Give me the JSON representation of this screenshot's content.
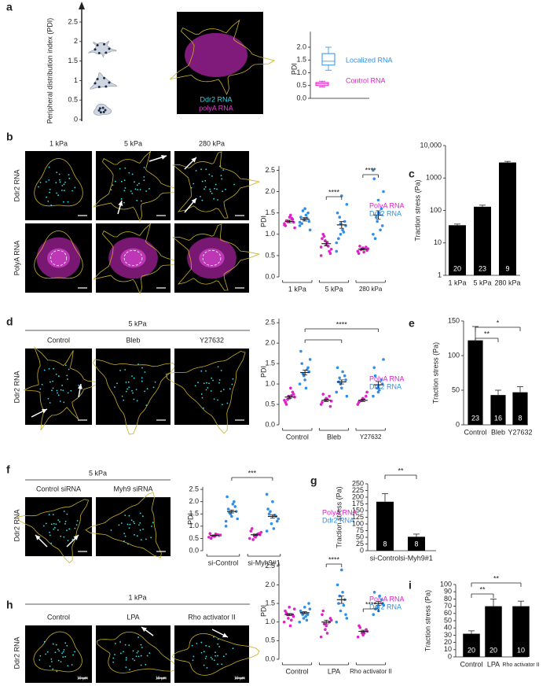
{
  "figure_labels": [
    "a",
    "b",
    "c",
    "d",
    "e",
    "f",
    "g",
    "h",
    "i"
  ],
  "panel_a": {
    "legend": [
      "Ddr2 RNA",
      "polyA RNA"
    ]
  },
  "panel_b": {
    "columns": [
      "1 kPa",
      "5 kPa",
      "280 kPa"
    ],
    "rows": [
      "Ddr2 RNA",
      "PolyA RNA"
    ]
  },
  "panel_d": {
    "condition": "5 kPa",
    "columns": [
      "Control",
      "Bleb",
      "Y27632"
    ],
    "rows": [
      "Ddr2 RNA"
    ]
  },
  "panel_f": {
    "condition": "5 kPa",
    "columns": [
      "Control siRNA",
      "Myh9 siRNA"
    ],
    "rows": [
      "Ddr2 RNA"
    ]
  },
  "panel_h": {
    "condition": "1 kPa",
    "columns": [
      "Control",
      "LPA",
      "Rho activator II"
    ],
    "rows": [
      "Ddr2 RNA"
    ],
    "scale_bars": [
      "10 µm",
      "10 µm",
      "10 µm"
    ]
  },
  "chart_data": [
    {
      "type": "scale",
      "ylabel": "Peripheral distribution index (PDI)",
      "ylim": [
        0,
        2.5
      ],
      "yticks": [
        0,
        0.5,
        1,
        1.5,
        2,
        2.5
      ]
    },
    {
      "type": "box",
      "ylabel": "PDI",
      "ylim": [
        0,
        2.3
      ],
      "yticks": [
        {
          "value": 0,
          "label": "0.0"
        },
        0.5,
        {
          "value": 1,
          "label": "1.0"
        },
        1.5,
        {
          "value": 2,
          "label": "2.0"
        }
      ],
      "series": [
        {
          "name": "Localized RNA",
          "color": "#2f8fe8",
          "whislo": 1.1,
          "q1": 1.3,
          "med": 1.45,
          "q3": 1.75,
          "whishi": 2.0
        },
        {
          "name": "Control RNA",
          "color": "#e020c8",
          "whislo": 0.45,
          "q1": 0.5,
          "med": 0.57,
          "q3": 0.62,
          "whishi": 0.67
        }
      ]
    },
    {
      "type": "strip",
      "ylabel": "PDI",
      "ylim": [
        0,
        2.6
      ],
      "yticks": [
        {
          "value": 0,
          "label": "0.0"
        },
        0.5,
        {
          "value": 1,
          "label": "1.0"
        },
        1.5,
        {
          "value": 2,
          "label": "2.0"
        },
        2.5
      ],
      "categories": [
        "1 kPa",
        "5 kPa",
        "280 kPa"
      ],
      "series": [
        {
          "name": "PolyA RNA",
          "color": "#e020c8",
          "values": [
            [
              1.25,
              1.3,
              1.35,
              1.2,
              1.4,
              1.28,
              1.32,
              1.45,
              1.15,
              1.3,
              1.38,
              1.22
            ],
            [
              0.7,
              0.85,
              0.6,
              0.9,
              0.75,
              0.55,
              1.0,
              0.8,
              0.65,
              0.95,
              0.72,
              0.5
            ],
            [
              0.6,
              0.65,
              0.7,
              0.55,
              0.68,
              0.62,
              0.72,
              0.58,
              0.66,
              0.64
            ]
          ],
          "means": [
            1.3,
            0.78,
            0.65
          ],
          "errors": [
            0.03,
            0.05,
            0.02
          ]
        },
        {
          "name": "Ddr2 RNA",
          "color": "#2f8fe8",
          "values": [
            [
              1.2,
              1.35,
              1.5,
              1.4,
              1.6,
              1.3,
              1.25,
              1.45,
              1.1,
              1.55,
              1.38,
              1.28
            ],
            [
              0.8,
              1.0,
              1.3,
              1.5,
              1.9,
              1.2,
              0.9,
              1.1,
              1.7,
              1.4,
              1.05,
              0.6,
              1.25
            ],
            [
              1.0,
              1.3,
              1.6,
              2.3,
              1.8,
              1.2,
              0.9,
              1.5,
              2.0,
              1.4,
              1.1,
              2.5
            ]
          ],
          "means": [
            1.35,
            1.22,
            1.45
          ],
          "errors": [
            0.04,
            0.08,
            0.1
          ]
        }
      ],
      "significance": [
        "****",
        "****"
      ]
    },
    {
      "type": "bar",
      "ylabel": "Traction stress (Pa)",
      "log": true,
      "ylim": [
        1,
        10000
      ],
      "yticks": [
        1,
        10,
        100,
        1000,
        {
          "value": 10000,
          "label": "10,000"
        }
      ],
      "categories": [
        "1 kPa",
        "5 kPa",
        "280 kPa"
      ],
      "values": [
        35,
        130,
        3000
      ],
      "errors": [
        3,
        15,
        250
      ],
      "n": [
        20,
        23,
        9
      ],
      "color": "#000000"
    },
    {
      "type": "strip",
      "ylabel": "PDI",
      "ylim": [
        0,
        2.6
      ],
      "yticks": [
        {
          "value": 0,
          "label": "0.0"
        },
        0.5,
        {
          "value": 1,
          "label": "1.0"
        },
        1.5,
        {
          "value": 2,
          "label": "2.0"
        },
        2.5
      ],
      "categories": [
        "Control",
        "Bleb",
        "Y27632"
      ],
      "series": [
        {
          "name": "PolyA RNA",
          "color": "#e020c8",
          "values": [
            [
              0.6,
              0.7,
              0.8,
              0.55,
              0.65,
              0.75,
              0.5,
              0.9,
              0.68,
              0.62,
              0.72
            ],
            [
              0.5,
              0.6,
              0.7,
              0.55,
              0.65,
              0.45,
              0.75,
              0.62,
              0.58
            ],
            [
              0.5,
              0.6,
              0.7,
              0.55,
              0.65,
              0.8,
              0.58,
              0.62
            ]
          ],
          "means": [
            0.68,
            0.6,
            0.6
          ],
          "errors": [
            0.03,
            0.03,
            0.03
          ]
        },
        {
          "name": "Ddr2 RNA",
          "color": "#2f8fe8",
          "values": [
            [
              1.0,
              1.2,
              1.4,
              1.8,
              1.1,
              1.3,
              1.5,
              0.9,
              1.6,
              1.25,
              1.35
            ],
            [
              0.8,
              1.0,
              1.2,
              1.4,
              0.9,
              1.1,
              1.05,
              1.3,
              0.7,
              1.15
            ],
            [
              0.7,
              0.9,
              1.1,
              1.4,
              0.8,
              1.0,
              1.2,
              0.85,
              1.6
            ]
          ],
          "means": [
            1.28,
            1.05,
            0.98
          ],
          "errors": [
            0.06,
            0.05,
            0.08
          ]
        }
      ],
      "significance": [
        "****"
      ]
    },
    {
      "type": "bar",
      "ylabel": "Traction stress (Pa)",
      "ylim": [
        0,
        150
      ],
      "yticks": [
        0,
        50,
        100,
        150
      ],
      "categories": [
        "Control",
        "Bleb",
        "Y27632"
      ],
      "values": [
        122,
        43,
        47
      ],
      "errors": [
        20,
        7,
        8
      ],
      "n": [
        23,
        16,
        8
      ],
      "color": "#000000",
      "significance": [
        "**",
        "*"
      ]
    },
    {
      "type": "strip",
      "ylabel": "PDI",
      "ylim": [
        0,
        2.6
      ],
      "yticks": [
        {
          "value": 0,
          "label": "0.0"
        },
        0.5,
        {
          "value": 1,
          "label": "1.0"
        },
        1.5,
        {
          "value": 2,
          "label": "2.0"
        },
        2.5
      ],
      "categories": [
        "si-Control",
        "si-Myh9#1"
      ],
      "series": [
        {
          "name": "PolyA RNA",
          "color": "#e020c8",
          "values": [
            [
              0.55,
              0.6,
              0.65,
              0.7,
              0.58,
              0.62,
              0.5,
              0.68,
              0.64,
              0.6,
              0.66
            ],
            [
              0.5,
              0.6,
              0.7,
              0.8,
              0.55,
              0.65,
              0.9,
              0.62,
              0.75,
              0.45,
              0.68
            ]
          ],
          "means": [
            0.62,
            0.65
          ],
          "errors": [
            0.02,
            0.03
          ]
        },
        {
          "name": "Ddr2 RNA",
          "color": "#2f8fe8",
          "values": [
            [
              1.2,
              1.5,
              1.8,
              2.2,
              1.4,
              1.6,
              1.7,
              1.9,
              1.3,
              1.55,
              2.0,
              1.0
            ],
            [
              0.8,
              1.1,
              1.4,
              1.7,
              2.0,
              1.2,
              1.5,
              0.9,
              1.3,
              1.6,
              1.45,
              2.3
            ]
          ],
          "means": [
            1.6,
            1.4
          ],
          "errors": [
            0.06,
            0.07
          ]
        }
      ],
      "significance": [
        "***"
      ]
    },
    {
      "type": "bar",
      "ylabel": "Traction stress (Pa)",
      "ylim": [
        0,
        250
      ],
      "yticks": [
        0,
        25,
        50,
        75,
        100,
        125,
        150,
        175,
        200,
        225,
        250
      ],
      "categories": [
        "si-Control",
        "si-Myh9#1"
      ],
      "values": [
        183,
        52
      ],
      "errors": [
        30,
        10
      ],
      "n": [
        8,
        8
      ],
      "color": "#000000",
      "significance": [
        "**"
      ]
    },
    {
      "type": "strip",
      "ylabel": "PDI",
      "ylim": [
        0,
        2.6
      ],
      "yticks": [
        {
          "value": 0,
          "label": "0.0"
        },
        0.5,
        {
          "value": 1,
          "label": "1.0"
        },
        1.5,
        {
          "value": 2,
          "label": "2.0"
        },
        2.5
      ],
      "categories": [
        "Control",
        "LPA",
        "Rho activator II"
      ],
      "series": [
        {
          "name": "PolyA RNA",
          "color": "#e020c8",
          "values": [
            [
              1.0,
              1.1,
              1.2,
              1.3,
              1.4,
              1.15,
              1.25,
              0.9,
              1.35,
              1.2,
              1.05
            ],
            [
              0.6,
              0.8,
              1.0,
              1.2,
              0.9,
              1.1,
              1.3,
              0.7,
              1.05,
              0.95
            ],
            [
              0.6,
              0.7,
              0.8,
              0.9,
              0.65,
              0.75,
              0.85,
              0.7
            ]
          ],
          "means": [
            1.2,
            1.0,
            0.75
          ],
          "errors": [
            0.03,
            0.05,
            0.03
          ]
        },
        {
          "name": "Ddr2 RNA",
          "color": "#2f8fe8",
          "values": [
            [
              1.0,
              1.1,
              1.2,
              1.3,
              1.4,
              1.5,
              1.25,
              1.15,
              1.35,
              1.2,
              1.05
            ],
            [
              1.0,
              1.3,
              1.6,
              2.0,
              2.4,
              1.2,
              1.5,
              1.8,
              1.1,
              1.7,
              1.45
            ],
            [
              1.2,
              1.4,
              1.6,
              1.8,
              1.3,
              1.5,
              1.35,
              1.7,
              1.45
            ]
          ],
          "means": [
            1.25,
            1.6,
            1.5
          ],
          "errors": [
            0.03,
            0.1,
            0.05
          ]
        }
      ],
      "significance": [
        "****",
        "****"
      ]
    },
    {
      "type": "bar",
      "ylabel": "Traction stress (Pa)",
      "ylim": [
        0,
        100
      ],
      "yticks": [
        0,
        10,
        20,
        30,
        40,
        50,
        60,
        70,
        80,
        90,
        100
      ],
      "categories": [
        "Control",
        "LPA",
        "Rho activator II"
      ],
      "values": [
        32,
        70,
        70
      ],
      "errors": [
        4,
        10,
        7
      ],
      "n": [
        20,
        20,
        10
      ],
      "color": "#000000",
      "significance": [
        "**",
        "**"
      ]
    }
  ]
}
